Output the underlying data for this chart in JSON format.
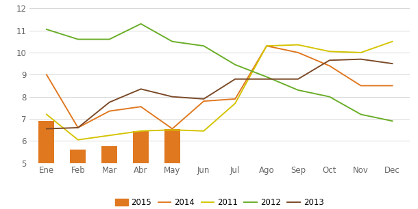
{
  "months": [
    "Ene",
    "Feb",
    "Mar",
    "Abr",
    "May",
    "Jun",
    "Jul",
    "Ago",
    "Sep",
    "Oct",
    "Nov",
    "Dec"
  ],
  "bar_months_indices": [
    0,
    1,
    2,
    3,
    4
  ],
  "bars_2015": [
    6.9,
    5.6,
    5.75,
    6.45,
    6.55
  ],
  "line_2014": [
    9.0,
    6.6,
    7.35,
    7.55,
    6.55,
    7.8,
    7.9,
    10.3,
    10.0,
    9.4,
    8.5,
    8.5
  ],
  "line_2011": [
    7.2,
    6.05,
    6.25,
    6.45,
    6.5,
    6.45,
    7.7,
    10.3,
    10.35,
    10.05,
    10.0,
    10.5
  ],
  "line_2012": [
    11.05,
    10.6,
    10.6,
    11.3,
    10.5,
    10.3,
    9.45,
    8.9,
    8.3,
    8.0,
    7.2,
    6.9
  ],
  "line_2013": [
    6.55,
    6.6,
    7.75,
    8.35,
    8.0,
    7.9,
    8.8,
    8.8,
    8.8,
    9.65,
    9.7,
    9.5
  ],
  "bar_color": "#E07820",
  "color_2014": "#E07820",
  "color_2011": "#D4C400",
  "color_2012": "#6AAD28",
  "color_2013": "#7B4A28",
  "ylim": [
    5,
    12
  ],
  "yticks": [
    5,
    6,
    7,
    8,
    9,
    10,
    11,
    12
  ],
  "ytick_labels": [
    "5",
    "6",
    "7",
    "8",
    "9",
    "10",
    "11",
    "12"
  ],
  "background_color": "#ffffff",
  "grid_color": "#d8d8d8"
}
